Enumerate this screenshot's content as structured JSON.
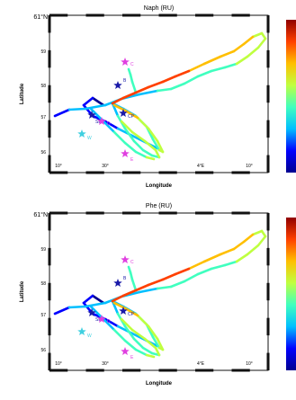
{
  "maps": [
    {
      "title": "Naph (RU)",
      "lat_top_label": "61°N",
      "lat_ticks": [
        "59",
        "58",
        "57",
        "56"
      ],
      "lon_ticks": [
        "10°",
        "30°",
        "4°E",
        "10°"
      ],
      "ylabel": "Latitude",
      "xlabel": "Longitude",
      "markers": [
        {
          "label": "C",
          "color": "#e040e0"
        },
        {
          "label": "B",
          "color": "#1a1aa8"
        },
        {
          "label": "SEn",
          "color": "#1a1aa8"
        },
        {
          "label": "CP",
          "color": "#1a1aa8"
        },
        {
          "label": "D",
          "color": "#e040e0"
        },
        {
          "label": "W",
          "color": "#40d0e0"
        },
        {
          "label": "E",
          "color": "#e040e0"
        }
      ]
    },
    {
      "title": "Phe (RU)",
      "lat_top_label": "61°N",
      "lat_ticks": [
        "59",
        "58",
        "57",
        "56"
      ],
      "lon_ticks": [
        "10°",
        "30°",
        "4°E",
        "10°"
      ],
      "ylabel": "Latitude",
      "xlabel": "Longitude",
      "markers": [
        {
          "label": "C",
          "color": "#e040e0"
        },
        {
          "label": "B",
          "color": "#1a1aa8"
        },
        {
          "label": "SEn",
          "color": "#1a1aa8"
        },
        {
          "label": "CP",
          "color": "#1a1aa8"
        },
        {
          "label": "D",
          "color": "#e040e0"
        },
        {
          "label": "W",
          "color": "#40d0e0"
        },
        {
          "label": "E",
          "color": "#e040e0"
        }
      ]
    }
  ],
  "colormap": [
    "#00008f",
    "#0000ff",
    "#00bfff",
    "#40ffbf",
    "#bfff40",
    "#ffbf00",
    "#ff4000",
    "#8f0000"
  ]
}
